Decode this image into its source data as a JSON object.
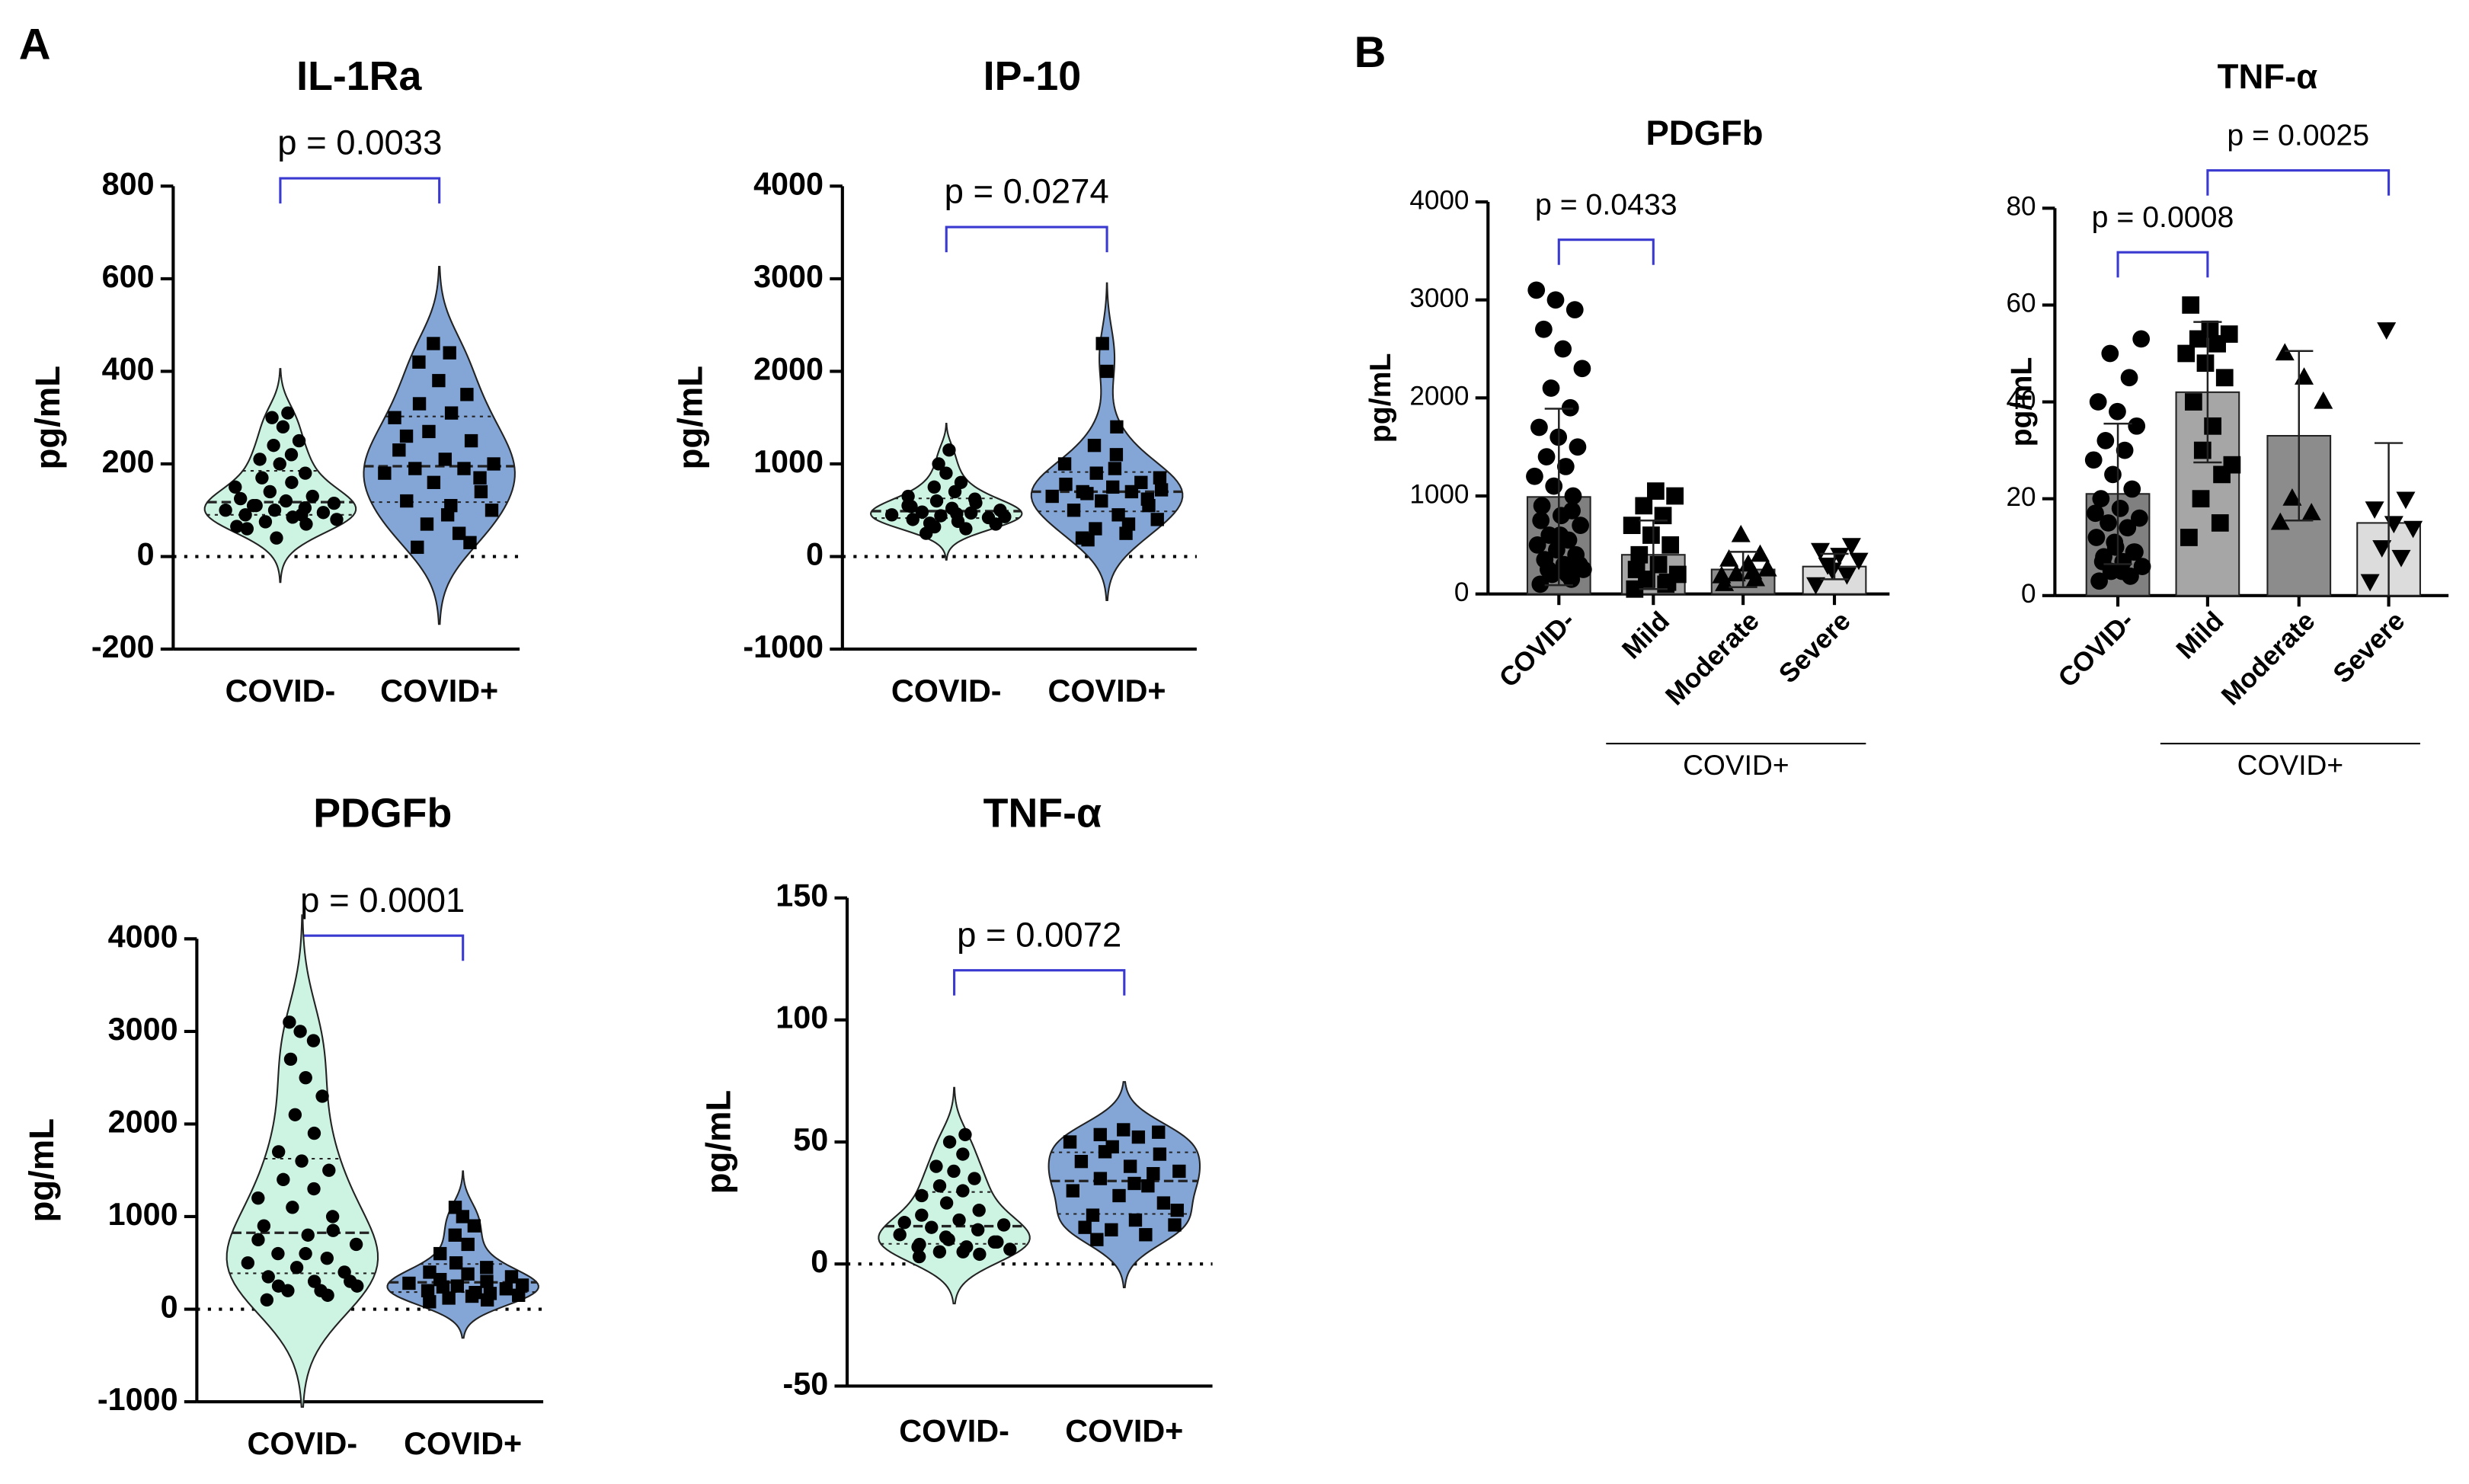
{
  "panel_labels": [
    "A",
    "B"
  ],
  "chart_data": [
    {
      "type": "violin",
      "title": "IL-1Ra",
      "ylabel": "pg/mL",
      "categories": [
        "COVID-",
        "COVID+"
      ],
      "ylim": [
        -200,
        800
      ],
      "yticks": [
        -200,
        0,
        200,
        400,
        600,
        800
      ],
      "comparisons": [
        {
          "label": "p = 0.0033",
          "from": 0,
          "to": 1
        }
      ],
      "series": [
        {
          "color": "#cdf3e3",
          "marker": "circle",
          "values": [
            60,
            70,
            75,
            80,
            85,
            90,
            95,
            100,
            100,
            105,
            110,
            115,
            120,
            125,
            130,
            140,
            150,
            160,
            170,
            180,
            200,
            210,
            220,
            240,
            250,
            280,
            300,
            310,
            40,
            65,
            90,
            110
          ]
        },
        {
          "color": "#84a6d6",
          "marker": "square",
          "values": [
            20,
            50,
            70,
            100,
            110,
            120,
            140,
            160,
            180,
            190,
            190,
            200,
            210,
            230,
            250,
            270,
            300,
            310,
            330,
            350,
            380,
            420,
            440,
            460,
            30,
            90,
            260,
            170
          ]
        }
      ]
    },
    {
      "type": "violin",
      "title": "IP-10",
      "ylabel": "pg/mL",
      "categories": [
        "COVID-",
        "COVID+"
      ],
      "ylim": [
        -1000,
        4000
      ],
      "yticks": [
        -1000,
        0,
        1000,
        2000,
        3000,
        4000
      ],
      "comparisons": [
        {
          "label": "p = 0.0274",
          "from": 0,
          "to": 1
        }
      ],
      "series": [
        {
          "color": "#cdf3e3",
          "marker": "circle",
          "values": [
            250,
            300,
            320,
            350,
            380,
            400,
            420,
            440,
            450,
            470,
            480,
            500,
            520,
            550,
            580,
            600,
            650,
            700,
            750,
            800,
            900,
            1000,
            1150,
            360,
            430,
            460,
            540,
            620
          ]
        },
        {
          "color": "#84a6d6",
          "marker": "square",
          "values": [
            200,
            250,
            300,
            400,
            450,
            500,
            550,
            600,
            650,
            700,
            700,
            720,
            750,
            780,
            800,
            900,
            1000,
            1100,
            1200,
            1400,
            2000,
            2300,
            350,
            680,
            850,
            950,
            180,
            620
          ]
        }
      ]
    },
    {
      "type": "violin",
      "title": "PDGFb",
      "ylabel": "pg/mL",
      "categories": [
        "COVID-",
        "COVID+"
      ],
      "ylim": [
        -1000,
        4000
      ],
      "yticks": [
        -1000,
        0,
        1000,
        2000,
        3000,
        4000
      ],
      "comparisons": [
        {
          "label": "p = 0.0001",
          "from": 0,
          "to": 1
        }
      ],
      "series": [
        {
          "color": "#cdf3e3",
          "marker": "circle",
          "values": [
            100,
            150,
            200,
            250,
            300,
            350,
            400,
            450,
            500,
            550,
            600,
            700,
            800,
            900,
            1000,
            1100,
            1200,
            1300,
            1400,
            1500,
            1600,
            1700,
            1900,
            2100,
            2300,
            2500,
            2700,
            2900,
            3000,
            3100,
            200,
            250,
            300,
            600,
            750,
            850
          ]
        },
        {
          "color": "#84a6d6",
          "marker": "square",
          "values": [
            80,
            100,
            120,
            150,
            180,
            200,
            220,
            250,
            280,
            300,
            320,
            350,
            380,
            400,
            450,
            500,
            600,
            700,
            800,
            900,
            1000,
            1100,
            170,
            240,
            260,
            140
          ]
        }
      ]
    },
    {
      "type": "violin",
      "title": "TNF-α",
      "ylabel": "pg/mL",
      "categories": [
        "COVID-",
        "COVID+"
      ],
      "ylim": [
        -50,
        150
      ],
      "yticks": [
        -50,
        0,
        50,
        100,
        150
      ],
      "comparisons": [
        {
          "label": "p = 0.0072",
          "from": 0,
          "to": 1
        }
      ],
      "series": [
        {
          "color": "#cdf3e3",
          "marker": "circle",
          "values": [
            3,
            4,
            5,
            6,
            7,
            8,
            9,
            10,
            12,
            14,
            15,
            16,
            18,
            20,
            22,
            25,
            28,
            30,
            32,
            35,
            38,
            40,
            45,
            50,
            53,
            5,
            7,
            9,
            11,
            17
          ]
        },
        {
          "color": "#84a6d6",
          "marker": "square",
          "values": [
            10,
            12,
            14,
            16,
            18,
            20,
            25,
            28,
            30,
            32,
            35,
            38,
            40,
            42,
            45,
            48,
            50,
            52,
            53,
            54,
            55,
            15,
            37,
            46,
            22,
            33
          ]
        }
      ]
    },
    {
      "type": "bar_scatter",
      "title": "PDGFb",
      "ylabel": "pg/mL",
      "categories": [
        "COVID-",
        "Mild",
        "Moderate",
        "Severe"
      ],
      "group": {
        "label": "COVID+",
        "from": 1,
        "to": 3
      },
      "ylim": [
        0,
        4000
      ],
      "yticks": [
        0,
        1000,
        2000,
        3000,
        4000
      ],
      "comparisons": [
        {
          "label": "p = 0.0433",
          "from": 0,
          "to": 1
        }
      ],
      "means": [
        990,
        400,
        250,
        280
      ],
      "sd": [
        900,
        350,
        180,
        130
      ],
      "colors": [
        "#808080",
        "#a6a6a6",
        "#8c8c8c",
        "#dcdcdc"
      ],
      "markers": [
        "circle",
        "square",
        "triangle",
        "triangle-down"
      ],
      "points": [
        [
          100,
          150,
          200,
          250,
          300,
          350,
          400,
          450,
          500,
          550,
          600,
          700,
          800,
          900,
          1000,
          1100,
          1200,
          1300,
          1400,
          1500,
          1600,
          1700,
          1900,
          2100,
          2300,
          2500,
          2700,
          2900,
          3000,
          3100,
          200,
          250,
          300,
          600,
          750,
          850
        ],
        [
          50,
          100,
          150,
          200,
          300,
          400,
          500,
          600,
          700,
          800,
          900,
          1000,
          1050,
          250,
          120
        ],
        [
          100,
          150,
          200,
          250,
          300,
          350,
          400,
          600,
          180,
          220
        ],
        [
          100,
          200,
          300,
          350,
          400,
          450,
          500,
          250
        ]
      ]
    },
    {
      "type": "bar_scatter",
      "title": "TNF-α",
      "ylabel": "pg/mL",
      "categories": [
        "COVID-",
        "Mild",
        "Moderate",
        "Severe"
      ],
      "group": {
        "label": "COVID+",
        "from": 1,
        "to": 3
      },
      "ylim": [
        0,
        80
      ],
      "yticks": [
        0,
        20,
        40,
        60,
        80
      ],
      "comparisons": [
        {
          "label": "p = 0.0008",
          "from": 0,
          "to": 1
        },
        {
          "label": "p = 0.0025",
          "from": 1,
          "to": 3
        }
      ],
      "means": [
        21,
        42,
        33,
        15
      ],
      "sd": [
        14.5,
        14.5,
        17.5,
        16.5
      ],
      "colors": [
        "#808080",
        "#a6a6a6",
        "#8c8c8c",
        "#dcdcdc"
      ],
      "markers": [
        "circle",
        "square",
        "triangle",
        "triangle-down"
      ],
      "points": [
        [
          3,
          4,
          5,
          6,
          7,
          8,
          9,
          10,
          12,
          14,
          15,
          16,
          18,
          20,
          22,
          25,
          28,
          30,
          32,
          35,
          38,
          40,
          45,
          50,
          53,
          5,
          7,
          9,
          11,
          17
        ],
        [
          12,
          15,
          20,
          27,
          35,
          40,
          45,
          48,
          50,
          52,
          53,
          54,
          55,
          60,
          25,
          30
        ],
        [
          15,
          17,
          20,
          40,
          45,
          50
        ],
        [
          3,
          8,
          10,
          14,
          15,
          18,
          20,
          55
        ]
      ]
    }
  ]
}
